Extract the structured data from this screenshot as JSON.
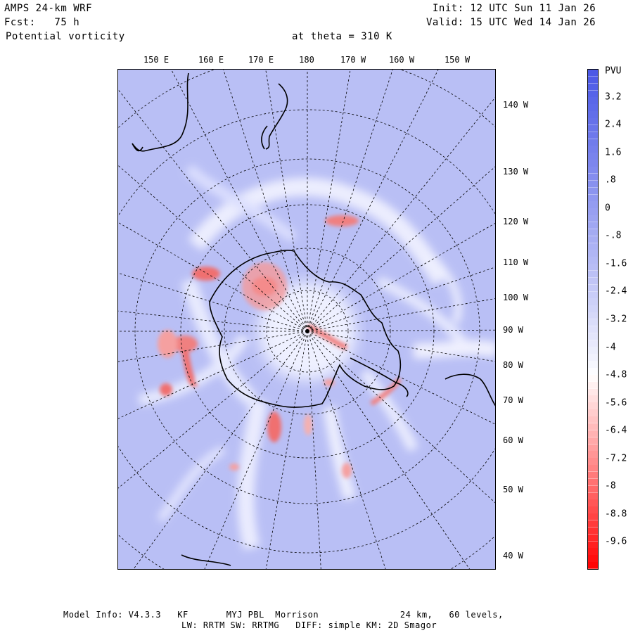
{
  "header": {
    "model": "AMPS 24-km WRF",
    "forecast": "Fcst:   75 h",
    "variable": "Potential vorticity",
    "level": "at theta = 310 K",
    "init": "Init: 12 UTC Sun 11 Jan 26",
    "valid": "Valid: 15 UTC Wed 14 Jan 26"
  },
  "top_labels": [
    "150 E",
    "160 E",
    "170 E",
    "180",
    "170 W",
    "160 W",
    "150 W"
  ],
  "right_labels": [
    "140 W",
    "130 W",
    "120 W",
    "110 W",
    "100 W",
    "90 W",
    "80 W",
    "70 W",
    "60 W",
    "50 W",
    "40 W"
  ],
  "colorbar": {
    "unit": "PVU",
    "labels": [
      "3.2",
      "2.4",
      "1.6",
      ".8",
      "0",
      "-.8",
      "-1.6",
      "-2.4",
      "-3.2",
      "-4",
      "-4.8",
      "-5.6",
      "-6.4",
      "-7.2",
      "-8",
      "-8.8",
      "-9.6"
    ],
    "range": [
      4.0,
      -10.4
    ],
    "colors": {
      "positive_max": "#4a57e6",
      "neutral": "#ffffff",
      "negative_max": "#ff0000"
    }
  },
  "footer": {
    "line1": "Model Info: V4.3.3   KF       MYJ PBL  Morrison               24 km,   60 levels,",
    "line2": "LW: RRTM SW: RRTMG   DIFF: simple KM: 2D Smagor"
  }
}
